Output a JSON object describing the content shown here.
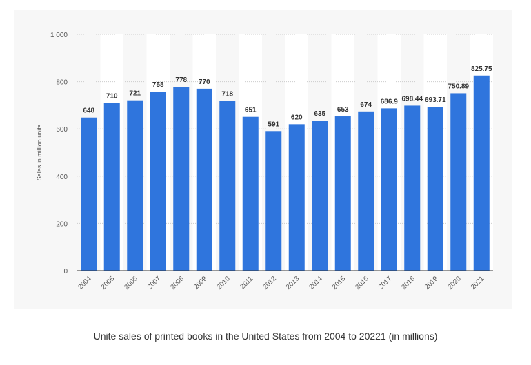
{
  "caption": "Unite sales of printed books in the United States from 2004 to 20221 (in millions)",
  "colors": {
    "bar": "#2f75dd",
    "stripe": "#ffffff",
    "grid": "#cccccc",
    "axis": "#333333",
    "text": "#555555"
  },
  "chart_data": {
    "type": "bar",
    "title": "",
    "xlabel": "",
    "ylabel": "Sales in million units",
    "ylim": [
      0,
      1000
    ],
    "yticks": [
      0,
      200,
      400,
      600,
      800,
      1000
    ],
    "ytick_labels": [
      "0",
      "200",
      "400",
      "600",
      "800",
      "1 000"
    ],
    "grid": true,
    "categories": [
      "2004",
      "2005",
      "2006",
      "2007",
      "2008",
      "2009",
      "2010",
      "2011",
      "2012",
      "2013",
      "2014",
      "2015",
      "2016",
      "2017",
      "2018",
      "2019",
      "2020",
      "2021"
    ],
    "values": [
      648,
      710,
      721,
      758,
      778,
      770,
      718,
      651,
      591,
      620,
      635,
      653,
      674,
      686.9,
      698.44,
      693.71,
      750.89,
      825.75
    ],
    "value_labels": [
      "648",
      "710",
      "721",
      "758",
      "778",
      "770",
      "718",
      "651",
      "591",
      "620",
      "635",
      "653",
      "674",
      "686.9",
      "698.44",
      "693.71",
      "750.89",
      "825.75"
    ]
  }
}
